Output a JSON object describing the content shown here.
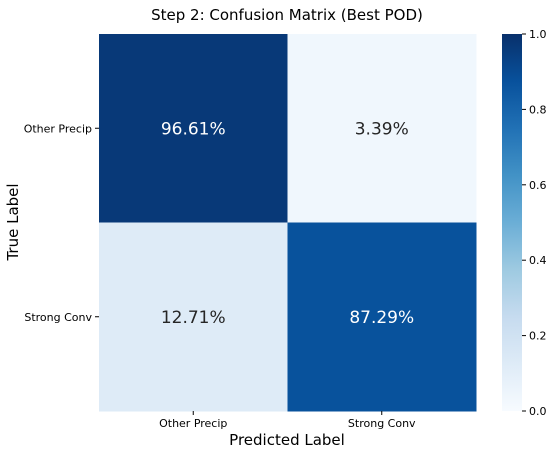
{
  "chart_data": {
    "type": "heatmap",
    "title": "Step 2: Confusion Matrix (Best POD)",
    "xlabel": "Predicted Label",
    "ylabel": "True Label",
    "x_categories": [
      "Other Precip",
      "Strong Conv"
    ],
    "y_categories": [
      "Other Precip",
      "Strong Conv"
    ],
    "values": [
      [
        0.9661,
        0.0339
      ],
      [
        0.1271,
        0.8729
      ]
    ],
    "cell_labels": [
      [
        "96.61%",
        "3.39%"
      ],
      [
        "12.71%",
        "87.29%"
      ]
    ],
    "colorbar": {
      "range": [
        0.0,
        1.0
      ],
      "ticks": [
        0.0,
        0.2,
        0.4,
        0.6,
        0.8,
        1.0
      ],
      "tick_labels": [
        "0.0",
        "0.2",
        "0.4",
        "0.6",
        "0.8",
        "1.0"
      ]
    },
    "colormap": "Blues",
    "colors": {
      "low": "#f7fbff",
      "mid_low": "#c6dbef",
      "mid": "#6baed6",
      "mid_high": "#2171b5",
      "high": "#08306b"
    }
  }
}
